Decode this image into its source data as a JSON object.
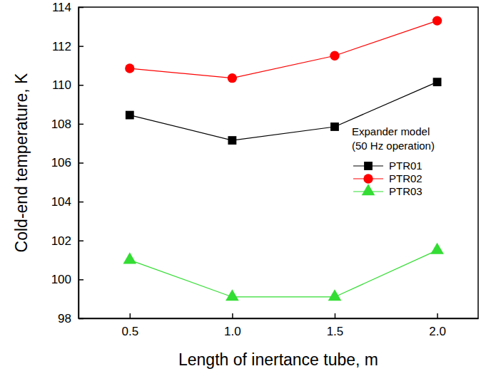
{
  "chart_data": {
    "type": "line",
    "x_label": "Length of inertance tube, m",
    "y_label": "Cold-end temperature, K",
    "x": [
      0.5,
      1.0,
      1.5,
      2.0
    ],
    "xlim": [
      0.25,
      2.2
    ],
    "xticks": [
      0.5,
      {
        "value": 1,
        "label": "1.0"
      },
      1.5,
      {
        "value": 2,
        "label": "2.0"
      }
    ],
    "ylim": [
      98,
      114
    ],
    "yticks": [
      98,
      100,
      102,
      104,
      106,
      108,
      110,
      112,
      114
    ],
    "legend": "right",
    "annotations": [
      "Expander model",
      "(50 Hz operation)"
    ],
    "series": [
      {
        "name": "PTR01",
        "color": "#000000",
        "marker": "square",
        "line_style": "solid",
        "values": [
          108.45,
          107.15,
          107.85,
          110.15
        ]
      },
      {
        "name": "PTR02",
        "color": "#ff0000",
        "marker": "circle",
        "line_style": "solid",
        "values": [
          110.85,
          110.35,
          111.5,
          113.3
        ]
      },
      {
        "name": "PTR03",
        "color": "#33dd33",
        "marker": "triangle",
        "line_style": "solid",
        "values": [
          101.0,
          99.1,
          99.1,
          101.5
        ]
      }
    ]
  }
}
